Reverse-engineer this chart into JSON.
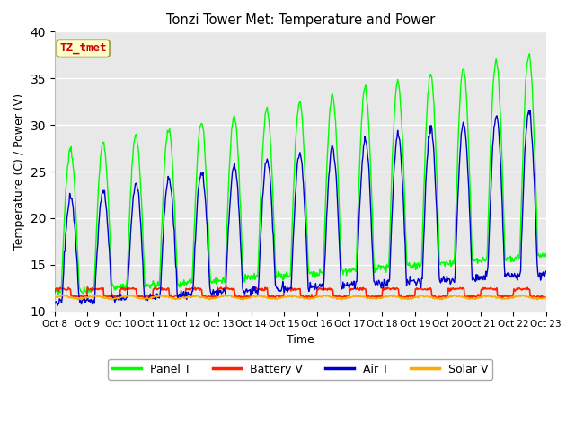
{
  "title": "Tonzi Tower Met: Temperature and Power",
  "xlabel": "Time",
  "ylabel": "Temperature (C) / Power (V)",
  "ylim": [
    10,
    40
  ],
  "yticks": [
    10,
    15,
    20,
    25,
    30,
    35,
    40
  ],
  "annotation_text": "TZ_tmet",
  "annotation_color": "#cc0000",
  "annotation_bg": "#ffffcc",
  "plot_bg_color": "#e8e8e8",
  "fig_bg_color": "#ffffff",
  "panel_color": "#00ff00",
  "battery_color": "#ff2200",
  "air_color": "#0000cc",
  "solar_color": "#ffaa00",
  "legend_labels": [
    "Panel T",
    "Battery V",
    "Air T",
    "Solar V"
  ],
  "x_tick_labels": [
    "Oct 8",
    "Oct 9",
    "Oct 10",
    "Oct 11",
    "Oct 12",
    "Oct 13",
    "Oct 14",
    "Oct 15",
    "Oct 16",
    "Oct 17",
    "Oct 18",
    "Oct 19",
    "Oct 20",
    "Oct 21",
    "Oct 22",
    "Oct 23"
  ],
  "figsize": [
    6.4,
    4.8
  ],
  "dpi": 100
}
